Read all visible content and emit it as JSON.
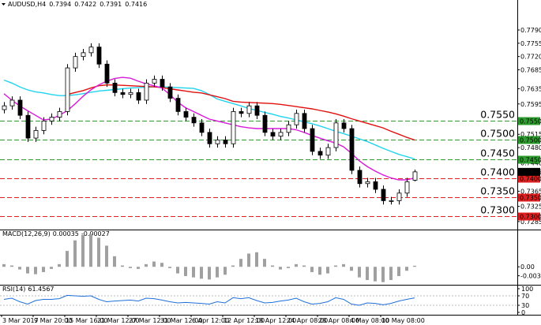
{
  "chart_data": {
    "type": "candlestick",
    "title": "AUDUSD,H4",
    "open": [
      0.758,
      0.759,
      0.7605,
      0.7565,
      0.7505,
      0.7525,
      0.755,
      0.756,
      0.7575,
      0.769,
      0.772,
      0.773,
      0.7745,
      0.77,
      0.765,
      0.7625,
      0.762,
      0.7625,
      0.7605,
      0.765,
      0.766,
      0.764,
      0.761,
      0.7575,
      0.756,
      0.7545,
      0.752,
      0.749,
      0.75,
      0.749,
      0.7575,
      0.757,
      0.759,
      0.7565,
      0.752,
      0.751,
      0.752,
      0.754,
      0.757,
      0.753,
      0.747,
      0.746,
      0.748,
      0.7545,
      0.753,
      0.742,
      0.7385,
      0.739,
      0.737,
      0.734,
      0.734,
      0.736,
      0.7394
    ],
    "high": [
      0.76,
      0.7615,
      0.7615,
      0.7575,
      0.7535,
      0.756,
      0.757,
      0.7585,
      0.77,
      0.773,
      0.774,
      0.7755,
      0.7755,
      0.771,
      0.766,
      0.7635,
      0.7635,
      0.7635,
      0.766,
      0.767,
      0.767,
      0.765,
      0.762,
      0.7585,
      0.757,
      0.7555,
      0.753,
      0.751,
      0.751,
      0.7585,
      0.7585,
      0.76,
      0.76,
      0.7575,
      0.753,
      0.753,
      0.755,
      0.758,
      0.758,
      0.754,
      0.748,
      0.749,
      0.7555,
      0.7555,
      0.754,
      0.743,
      0.74,
      0.74,
      0.738,
      0.735,
      0.737,
      0.74,
      0.7422
    ],
    "low": [
      0.757,
      0.758,
      0.7555,
      0.7495,
      0.7495,
      0.7515,
      0.754,
      0.755,
      0.7565,
      0.768,
      0.771,
      0.772,
      0.769,
      0.764,
      0.7615,
      0.761,
      0.761,
      0.7595,
      0.7595,
      0.764,
      0.763,
      0.76,
      0.7565,
      0.755,
      0.7535,
      0.751,
      0.748,
      0.748,
      0.748,
      0.748,
      0.756,
      0.756,
      0.7555,
      0.751,
      0.75,
      0.75,
      0.751,
      0.753,
      0.752,
      0.746,
      0.745,
      0.745,
      0.747,
      0.752,
      0.741,
      0.7375,
      0.7375,
      0.736,
      0.733,
      0.733,
      0.733,
      0.735,
      0.7391
    ],
    "close": [
      0.759,
      0.7605,
      0.7565,
      0.7505,
      0.7525,
      0.755,
      0.756,
      0.7575,
      0.769,
      0.772,
      0.773,
      0.7745,
      0.77,
      0.765,
      0.7625,
      0.762,
      0.7625,
      0.7605,
      0.765,
      0.766,
      0.764,
      0.761,
      0.7575,
      0.756,
      0.7545,
      0.752,
      0.749,
      0.75,
      0.749,
      0.7575,
      0.757,
      0.759,
      0.7565,
      0.752,
      0.751,
      0.752,
      0.754,
      0.757,
      0.753,
      0.747,
      0.746,
      0.748,
      0.7545,
      0.753,
      0.742,
      0.7385,
      0.739,
      0.737,
      0.734,
      0.734,
      0.736,
      0.739,
      0.7416
    ],
    "overlays": [
      {
        "color": "#22d3ee",
        "values": [
          0.7658,
          0.765,
          0.764,
          0.7632,
          0.7627,
          0.7624,
          0.762,
          0.7617,
          0.7617,
          0.7619,
          0.7622,
          0.7626,
          0.7629,
          0.7631,
          0.7633,
          0.7635,
          0.7637,
          0.7638,
          0.7639,
          0.764,
          0.764,
          0.7639,
          0.7638,
          0.7637,
          0.7636,
          0.763,
          0.762,
          0.7608,
          0.7602,
          0.7596,
          0.759,
          0.7583,
          0.7578,
          0.7573,
          0.7568,
          0.7562,
          0.7558,
          0.7553,
          0.7548,
          0.7543,
          0.7537,
          0.753,
          0.7523,
          0.7517,
          0.751,
          0.7503,
          0.7496,
          0.7487,
          0.7478,
          0.747,
          0.7462,
          0.7456,
          0.745
        ]
      },
      {
        "color": "#e01010",
        "values": [
          null,
          null,
          null,
          null,
          null,
          null,
          null,
          null,
          0.762,
          0.7625,
          0.763,
          0.7637,
          0.7643,
          0.7645,
          0.7645,
          0.7644,
          0.7643,
          0.7642,
          0.7641,
          0.764,
          0.7638,
          0.7635,
          0.7632,
          0.7629,
          0.7626,
          0.7624,
          0.7619,
          0.7614,
          0.7609,
          0.7602,
          0.76,
          0.7599,
          0.7598,
          0.7597,
          0.7596,
          0.7594,
          0.7591,
          0.7588,
          0.7585,
          0.7582,
          0.7578,
          0.7574,
          0.7569,
          0.7563,
          0.7556,
          0.755,
          0.7544,
          0.7538,
          0.7532,
          0.7523,
          0.7515,
          0.7507,
          0.75
        ]
      },
      {
        "color": "#d81bd8",
        "values": [
          0.7622,
          0.7605,
          0.759,
          0.7577,
          0.7565,
          0.7553,
          0.7555,
          0.7565,
          0.7577,
          0.7595,
          0.7615,
          0.7632,
          0.7645,
          0.7655,
          0.7662,
          0.7665,
          0.7663,
          0.7655,
          0.7648,
          0.7643,
          0.7637,
          0.762,
          0.76,
          0.7585,
          0.7575,
          0.7565,
          0.7555,
          0.755,
          0.7545,
          0.754,
          0.7535,
          0.7532,
          0.753,
          0.753,
          0.753,
          0.753,
          0.753,
          0.7527,
          0.752,
          0.7512,
          0.7505,
          0.7498,
          0.7492,
          0.7482,
          0.7465,
          0.7445,
          0.743,
          0.7418,
          0.7408,
          0.74,
          0.7395,
          0.7395,
          0.74
        ]
      }
    ],
    "levels": [
      {
        "value": 0.755,
        "label": "0.7550",
        "color": "#2e9b2e"
      },
      {
        "value": 0.75,
        "label": "0.7500",
        "color": "#2e9b2e"
      },
      {
        "value": 0.745,
        "label": "0.7450",
        "color": "#2e9b2e"
      },
      {
        "value": 0.74,
        "label": "0.7400",
        "color": "#e02020"
      },
      {
        "value": 0.735,
        "label": "0.7350",
        "color": "#e02020"
      },
      {
        "value": 0.73,
        "label": "0.7300",
        "color": "#e02020"
      }
    ],
    "ylim": [
      0.7266,
      0.7869
    ],
    "yticks": [
      {
        "value": 0.779,
        "label": "0.7790"
      },
      {
        "value": 0.7755,
        "label": "0.7755"
      },
      {
        "value": 0.772,
        "label": "0.7720"
      },
      {
        "value": 0.7685,
        "label": "0.7685"
      },
      {
        "value": 0.7635,
        "label": "0.7635"
      },
      {
        "value": 0.7595,
        "label": "0.7595"
      },
      {
        "value": 0.7515,
        "label": "0.7515"
      },
      {
        "value": 0.748,
        "label": "0.7480"
      },
      {
        "value": 0.744,
        "label": "0.7440"
      },
      {
        "value": 0.7365,
        "label": "0.7365"
      },
      {
        "value": 0.7325,
        "label": "0.7325"
      },
      {
        "value": 0.7285,
        "label": "0.7285"
      }
    ],
    "xticks": [
      {
        "value": 0,
        "label": "3 Mar 2017"
      },
      {
        "value": 4,
        "label": "9 Mar 20:00"
      },
      {
        "value": 8,
        "label": "15 Mar 16:00"
      },
      {
        "value": 12,
        "label": "21 Mar 12:00"
      },
      {
        "value": 16,
        "label": "27 Mar 12:00"
      },
      {
        "value": 20,
        "label": "31 Mar 12:00"
      },
      {
        "value": 24,
        "label": "6 Apr 12:00"
      },
      {
        "value": 28,
        "label": "12 Apr 12:00"
      },
      {
        "value": 32,
        "label": "18 Apr 12:00"
      },
      {
        "value": 36,
        "label": "24 Apr 08:00"
      },
      {
        "value": 40,
        "label": "28 Apr 08:00"
      },
      {
        "value": 44,
        "label": "4 May 08:00"
      },
      {
        "value": 48,
        "label": "10 May 08:00"
      }
    ],
    "macd": {
      "title": "MACD(12,26,9)",
      "main": 0.00035,
      "signal": -0.00027,
      "color": "#a0a0a0",
      "values": [
        0.001,
        0.0005,
        -0.001,
        -0.0025,
        -0.0028,
        -0.002,
        -0.0008,
        0.001,
        0.006,
        0.01,
        0.012,
        0.0125,
        0.011,
        0.008,
        0.004,
        0.0005,
        -0.0005,
        -0.0008,
        0.001,
        0.002,
        0.0015,
        -0.0005,
        -0.0025,
        -0.0035,
        -0.004,
        -0.0045,
        -0.0048,
        -0.004,
        -0.003,
        0.0005,
        0.003,
        0.005,
        0.0055,
        0.003,
        0.0005,
        -0.001,
        -0.0005,
        0.001,
        0.0005,
        -0.002,
        -0.003,
        -0.0025,
        0.0005,
        0.001,
        -0.0015,
        -0.004,
        -0.005,
        -0.0055,
        -0.0058,
        -0.005,
        -0.0035,
        -0.0015,
        0.0004
      ],
      "ylim": [
        -0.0065,
        0.0135
      ],
      "yticks": [
        {
          "value": 0,
          "label": "0.00"
        },
        {
          "value": -0.00339,
          "label": "-0.00339"
        }
      ]
    },
    "rsi": {
      "title": "RSI(14)",
      "value": 61.4567,
      "color": "#1e6fd9",
      "values": [
        55,
        60,
        45,
        35,
        50,
        55,
        55,
        58,
        72,
        70,
        68,
        70,
        55,
        45,
        48,
        50,
        52,
        48,
        60,
        58,
        52,
        45,
        40,
        42,
        40,
        38,
        35,
        45,
        40,
        62,
        58,
        62,
        50,
        40,
        42,
        48,
        52,
        60,
        45,
        35,
        38,
        45,
        62,
        55,
        35,
        30,
        40,
        38,
        32,
        38,
        48,
        55,
        61.4567
      ],
      "ylim": [
        0,
        100
      ],
      "yticks": [
        0,
        30,
        70,
        100
      ]
    }
  }
}
